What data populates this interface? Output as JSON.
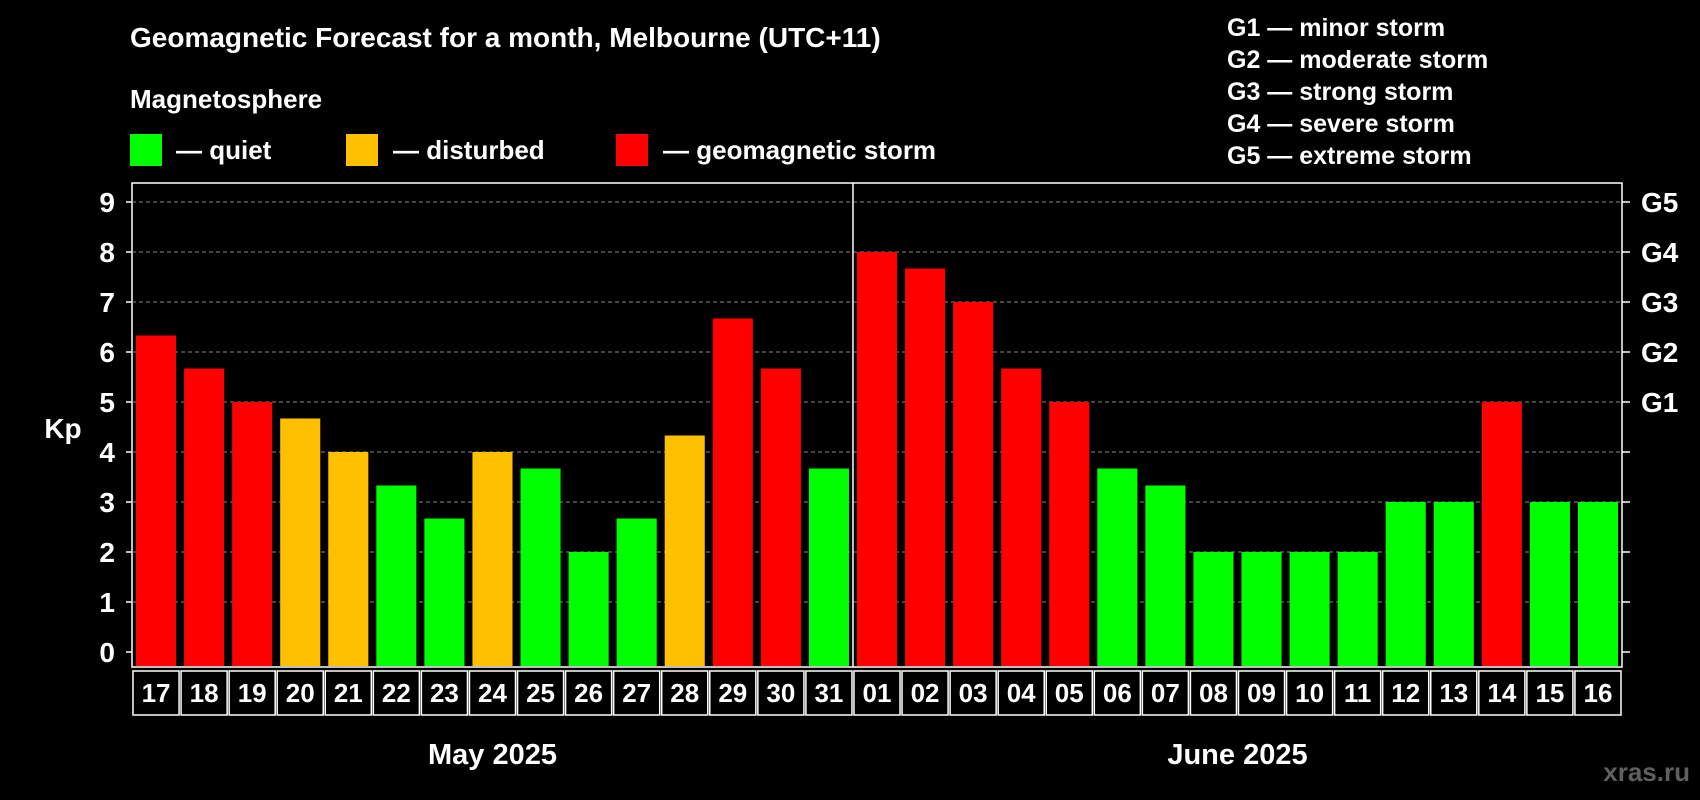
{
  "chart_data": {
    "type": "bar",
    "title": "Geomagnetic Forecast for a month, Melbourne (UTC+11)",
    "subtitle": "Magnetosphere",
    "ylabel": "Kp",
    "ylim": [
      0,
      9
    ],
    "yticks": [
      0,
      1,
      2,
      3,
      4,
      5,
      6,
      7,
      8,
      9
    ],
    "grid": true,
    "legend": [
      {
        "label": "— quiet",
        "color": "#00ff00"
      },
      {
        "label": "— disturbed",
        "color": "#ffc000"
      },
      {
        "label": "— geomagnetic storm",
        "color": "#ff0000"
      }
    ],
    "storm_levels": [
      {
        "label": "G1 — minor storm"
      },
      {
        "label": "G2 — moderate storm"
      },
      {
        "label": "G3 — strong storm"
      },
      {
        "label": "G4 — severe storm"
      },
      {
        "label": "G5 — extreme storm"
      }
    ],
    "right_axis": [
      {
        "kp": 5,
        "label": "G1"
      },
      {
        "kp": 6,
        "label": "G2"
      },
      {
        "kp": 7,
        "label": "G3"
      },
      {
        "kp": 8,
        "label": "G4"
      },
      {
        "kp": 9,
        "label": "G5"
      }
    ],
    "months": [
      {
        "label": "May 2025",
        "start": 0,
        "end": 15
      },
      {
        "label": "June 2025",
        "start": 15,
        "end": 31
      }
    ],
    "categories": [
      "17",
      "18",
      "19",
      "20",
      "21",
      "22",
      "23",
      "24",
      "25",
      "26",
      "27",
      "28",
      "29",
      "30",
      "31",
      "01",
      "02",
      "03",
      "04",
      "05",
      "06",
      "07",
      "08",
      "09",
      "10",
      "11",
      "12",
      "13",
      "14",
      "15",
      "16"
    ],
    "values": [
      6.33,
      5.67,
      5,
      4.67,
      4,
      3.33,
      2.67,
      4,
      3.67,
      2,
      2.67,
      4.33,
      6.67,
      5.67,
      3.67,
      8,
      7.67,
      7,
      5.67,
      5,
      3.67,
      3.33,
      2,
      2,
      2,
      2,
      3,
      3,
      5,
      3,
      3
    ],
    "levels": [
      "storm",
      "storm",
      "storm",
      "disturbed",
      "disturbed",
      "quiet",
      "quiet",
      "disturbed",
      "quiet",
      "quiet",
      "quiet",
      "disturbed",
      "storm",
      "storm",
      "quiet",
      "storm",
      "storm",
      "storm",
      "storm",
      "storm",
      "quiet",
      "quiet",
      "quiet",
      "quiet",
      "quiet",
      "quiet",
      "quiet",
      "quiet",
      "storm",
      "quiet",
      "quiet"
    ],
    "colors": {
      "quiet": "#00ff00",
      "disturbed": "#ffc000",
      "storm": "#ff0000"
    }
  },
  "watermark": "xras.ru"
}
